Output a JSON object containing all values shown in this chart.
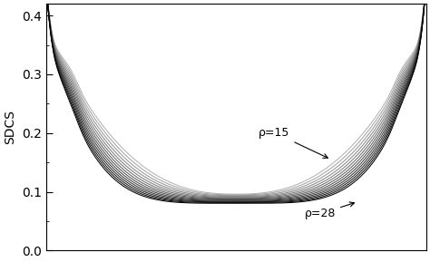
{
  "title": "",
  "ylabel": "SDCS",
  "xlabel": "",
  "ylim": [
    0,
    0.42
  ],
  "xlim": [
    0,
    1
  ],
  "yticks": [
    0,
    0.1,
    0.2,
    0.3,
    0.4
  ],
  "rho_min": 15,
  "rho_max": 28,
  "annotation_rho15": "ρ=15",
  "annotation_rho28": "ρ=28",
  "background": "#ffffff",
  "n_curves": 14
}
